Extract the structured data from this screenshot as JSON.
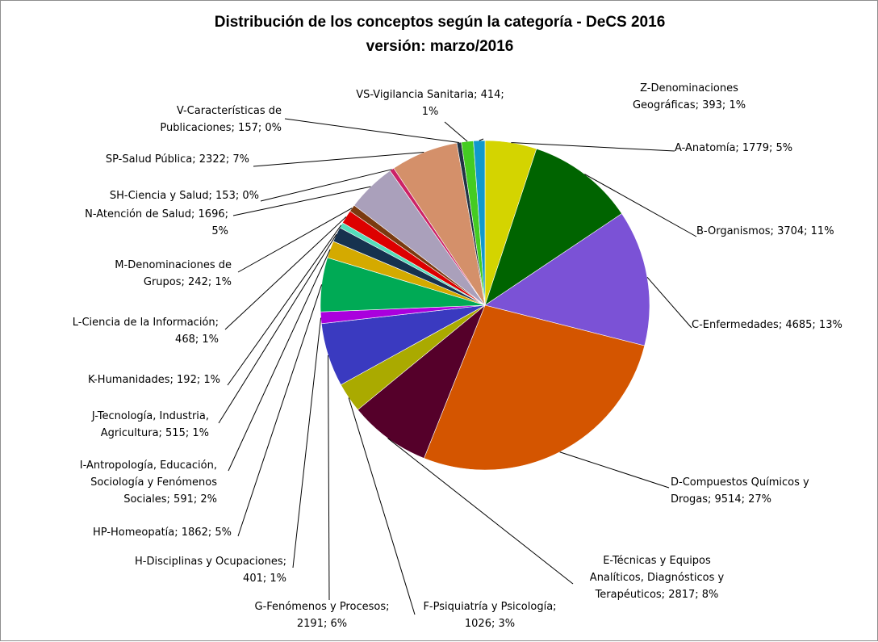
{
  "chart_data": {
    "type": "pie",
    "title": "Distribución de los conceptos según la categoría - DeCS 2016",
    "subtitle": "versión: marzo/2016",
    "slices": [
      {
        "label_lines": [
          "A-Anatomía; 1779; 5%"
        ],
        "category": "A-Anatomía",
        "value": 1779,
        "percent": "5%",
        "color": "#d4d400"
      },
      {
        "label_lines": [
          "B-Organismos; 3704; 11%"
        ],
        "category": "B-Organismos",
        "value": 3704,
        "percent": "11%",
        "color": "#006400"
      },
      {
        "label_lines": [
          "C-Enfermedades; 4685; 13%"
        ],
        "category": "C-Enfermedades",
        "value": 4685,
        "percent": "13%",
        "color": "#7b52d6"
      },
      {
        "label_lines": [
          "D-Compuestos Químicos y",
          "Drogas; 9514; 27%"
        ],
        "category": "D-Compuestos Químicos y Drogas",
        "value": 9514,
        "percent": "27%",
        "color": "#d45500"
      },
      {
        "label_lines": [
          "E-Técnicas y Equipos",
          "Analíticos, Diagnósticos y",
          "Terapéuticos; 2817; 8%"
        ],
        "category": "E-Técnicas y Equipos Analíticos, Diagnósticos y Terapéuticos",
        "value": 2817,
        "percent": "8%",
        "color": "#55002a"
      },
      {
        "label_lines": [
          "F-Psiquiatría y Psicología;",
          "1026; 3%"
        ],
        "category": "F-Psiquiatría y Psicología",
        "value": 1026,
        "percent": "3%",
        "color": "#aaaa00"
      },
      {
        "label_lines": [
          "G-Fenómenos y Procesos;",
          "2191; 6%"
        ],
        "category": "G-Fenómenos y Procesos",
        "value": 2191,
        "percent": "6%",
        "color": "#3a3ac0"
      },
      {
        "label_lines": [
          "H-Disciplinas y Ocupaciones;",
          "401; 1%"
        ],
        "category": "H-Disciplinas y Ocupaciones",
        "value": 401,
        "percent": "1%",
        "color": "#aa00dd"
      },
      {
        "label_lines": [
          "HP-Homeopatía; 1862; 5%"
        ],
        "category": "HP-Homeopatía",
        "value": 1862,
        "percent": "5%",
        "color": "#00aa55"
      },
      {
        "label_lines": [
          "I-Antropología, Educación,",
          "Sociología y Fenómenos",
          "Sociales; 591; 2%"
        ],
        "category": "I-Antropología, Educación, Sociología y Fenómenos Sociales",
        "value": 591,
        "percent": "2%",
        "color": "#d4aa00"
      },
      {
        "label_lines": [
          "J-Tecnología, Industria,",
          "Agricultura; 515; 1%"
        ],
        "category": "J-Tecnología, Industria, Agricultura",
        "value": 515,
        "percent": "1%",
        "color": "#16324f"
      },
      {
        "label_lines": [
          "K-Humanidades; 192; 1%"
        ],
        "category": "K-Humanidades",
        "value": 192,
        "percent": "1%",
        "color": "#55ddbb"
      },
      {
        "label_lines": [
          "L-Ciencia de la Información;",
          "468; 1%"
        ],
        "category": "L-Ciencia de la Información",
        "value": 468,
        "percent": "1%",
        "color": "#dd0000"
      },
      {
        "label_lines": [
          "M-Denominaciones de",
          "Grupos; 242; 1%"
        ],
        "category": "M-Denominaciones de Grupos",
        "value": 242,
        "percent": "1%",
        "color": "#7a3a10"
      },
      {
        "label_lines": [
          "N-Atención de Salud; 1696;",
          "5%"
        ],
        "category": "N-Atención de Salud",
        "value": 1696,
        "percent": "5%",
        "color": "#aaa0bb"
      },
      {
        "label_lines": [
          "SH-Ciencia y Salud; 153; 0%"
        ],
        "category": "SH-Ciencia y Salud",
        "value": 153,
        "percent": "0%",
        "color": "#cc2266"
      },
      {
        "label_lines": [
          "SP-Salud Pública; 2322; 7%"
        ],
        "category": "SP-Salud Pública",
        "value": 2322,
        "percent": "7%",
        "color": "#d4906a"
      },
      {
        "label_lines": [
          "V-Características de",
          "Publicaciones; 157; 0%"
        ],
        "category": "V-Características de Publicaciones",
        "value": 157,
        "percent": "0%",
        "color": "#223344"
      },
      {
        "label_lines": [
          "VS-Vigilancia Sanitaria; 414;",
          "1%"
        ],
        "category": "VS-Vigilancia Sanitaria",
        "value": 414,
        "percent": "1%",
        "color": "#44cc22"
      },
      {
        "label_lines": [
          "Z-Denominaciones",
          "Geográficas; 393; 1%"
        ],
        "category": "Z-Denominaciones Geográficas",
        "value": 393,
        "percent": "1%",
        "color": "#1199cc"
      }
    ],
    "legend": "none",
    "start": "12 o'clock",
    "direction": "clockwise"
  }
}
